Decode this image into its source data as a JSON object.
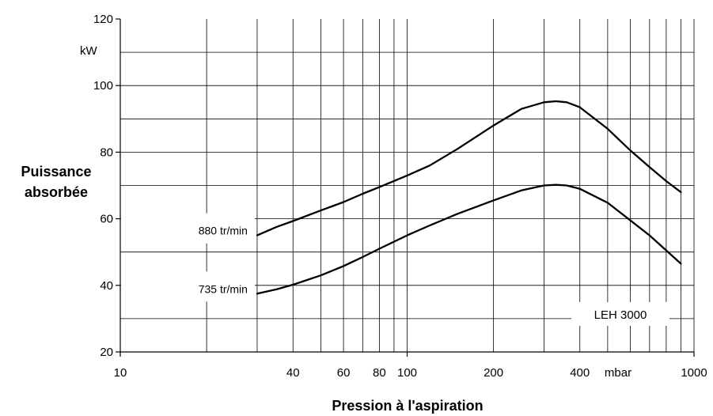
{
  "chart_data": {
    "type": "line",
    "x_scale": "log",
    "xlim": [
      10,
      1000
    ],
    "ylim": [
      20,
      120
    ],
    "grid": true,
    "xlabel": "Pression à l'aspiration",
    "x_unit": "mbar",
    "ylabel_line1": "Puissance",
    "ylabel_line2": "absorbée",
    "y_unit": "kW",
    "x_tick_labels": [
      {
        "value": 10,
        "label": "10"
      },
      {
        "value": 40,
        "label": "40"
      },
      {
        "value": 60,
        "label": "60"
      },
      {
        "value": 80,
        "label": "80"
      },
      {
        "value": 100,
        "label": "100"
      },
      {
        "value": 200,
        "label": "200"
      },
      {
        "value": 400,
        "label": "400"
      },
      {
        "value": 1000,
        "label": "1000"
      }
    ],
    "y_tick_labels": [
      {
        "value": 20,
        "label": "20"
      },
      {
        "value": 40,
        "label": "40"
      },
      {
        "value": 60,
        "label": "60"
      },
      {
        "value": 80,
        "label": "80"
      },
      {
        "value": 100,
        "label": "100"
      },
      {
        "value": 120,
        "label": "120"
      }
    ],
    "model_label": "LEH 3000",
    "series": [
      {
        "name": "880 tr/min",
        "x": [
          30,
          35,
          40,
          50,
          60,
          70,
          80,
          100,
          120,
          150,
          200,
          250,
          300,
          330,
          360,
          400,
          500,
          600,
          700,
          800,
          900
        ],
        "y": [
          55,
          57.5,
          59.3,
          62.5,
          65,
          67.5,
          69.5,
          73,
          76,
          81,
          88,
          93,
          95,
          95.3,
          95,
          93.5,
          87,
          80.5,
          75.5,
          71.3,
          68
        ]
      },
      {
        "name": "735 tr/min",
        "x": [
          30,
          35,
          40,
          50,
          60,
          70,
          80,
          100,
          120,
          150,
          200,
          250,
          300,
          330,
          360,
          400,
          500,
          600,
          700,
          800,
          900
        ],
        "y": [
          37.5,
          38.8,
          40.2,
          43,
          45.8,
          48.5,
          51,
          55,
          58,
          61.5,
          65.5,
          68.5,
          70,
          70.2,
          70,
          69,
          64.8,
          59.5,
          55,
          50.5,
          46.5
        ]
      }
    ]
  }
}
